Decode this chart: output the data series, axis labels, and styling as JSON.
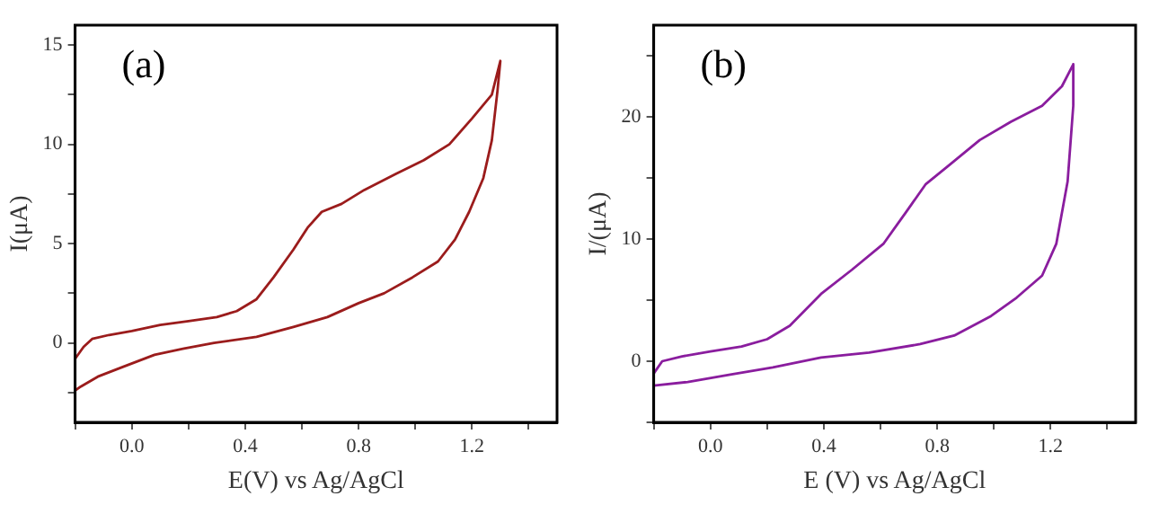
{
  "chart_data": [
    {
      "type": "line",
      "xlabel": "E(V) vs Ag/AgCl",
      "ylabel": "I(μA)",
      "annotations": [
        "(a)"
      ],
      "xlim": [
        -0.2,
        1.5
      ],
      "ylim": [
        -4,
        16
      ],
      "xticks": [
        {
          "value": -0.2,
          "label": null
        },
        {
          "value": 0,
          "label": "0.0"
        },
        {
          "value": 0.2,
          "label": null
        },
        0.4,
        {
          "value": 0.6,
          "label": null
        },
        0.8,
        {
          "value": 1.0,
          "label": null
        },
        1.2,
        {
          "value": 1.4,
          "label": null
        }
      ],
      "yticks": [
        {
          "value": -2.5,
          "label": null
        },
        0,
        {
          "value": 2.5,
          "label": null
        },
        5,
        {
          "value": 7.5,
          "label": null
        },
        10,
        {
          "value": 12.5,
          "label": null
        },
        15
      ],
      "grid": false,
      "legend": false,
      "marker": "none",
      "line_style": "solid",
      "series": [
        {
          "color": "#9b1c1c",
          "x": [
            -0.2,
            -0.17,
            -0.14,
            -0.08,
            0,
            0.1,
            0.2,
            0.3,
            0.37,
            0.44,
            0.5,
            0.57,
            0.62,
            0.67,
            0.74,
            0.82,
            0.93,
            1.03,
            1.12,
            1.2,
            1.27,
            1.3,
            1.29,
            1.27,
            1.24,
            1.19,
            1.14,
            1.08,
            0.99,
            0.89,
            0.8,
            0.69,
            0.57,
            0.44,
            0.29,
            0.18,
            0.08,
            -0.03,
            -0.12,
            -0.18,
            -0.2
          ],
          "values": [
            -0.8,
            -0.2,
            0.2,
            0.4,
            0.6,
            0.9,
            1.1,
            1.3,
            1.6,
            2.2,
            3.3,
            4.7,
            5.8,
            6.6,
            7.0,
            7.7,
            8.5,
            9.2,
            10.0,
            11.3,
            12.5,
            14.2,
            12.7,
            10.2,
            8.3,
            6.6,
            5.2,
            4.1,
            3.3,
            2.5,
            2.0,
            1.3,
            0.8,
            0.3,
            0,
            -0.3,
            -0.6,
            -1.2,
            -1.7,
            -2.2,
            -2.4
          ]
        }
      ]
    },
    {
      "type": "line",
      "xlabel": "E (V) vs Ag/AgCl",
      "ylabel": "I/(μA)",
      "annotations": [
        "(b)"
      ],
      "xlim": [
        -0.2,
        1.5
      ],
      "ylim": [
        -5,
        27.5
      ],
      "xticks": [
        {
          "value": -0.2,
          "label": null
        },
        {
          "value": 0,
          "label": "0.0"
        },
        {
          "value": 0.2,
          "label": null
        },
        0.4,
        {
          "value": 0.6,
          "label": null
        },
        0.8,
        {
          "value": 1.0,
          "label": null
        },
        1.2,
        {
          "value": 1.4,
          "label": null
        }
      ],
      "yticks": [
        {
          "value": -5,
          "label": null
        },
        0,
        {
          "value": 5,
          "label": null
        },
        10,
        {
          "value": 15,
          "label": null
        },
        20,
        {
          "value": 25,
          "label": null
        }
      ],
      "grid": false,
      "legend": false,
      "marker": "none",
      "line_style": "solid",
      "series": [
        {
          "color": "#8a1d9e",
          "x": [
            -0.2,
            -0.17,
            -0.1,
            0,
            0.11,
            0.2,
            0.28,
            0.39,
            0.5,
            0.61,
            0.69,
            0.76,
            0.84,
            0.95,
            1.06,
            1.17,
            1.24,
            1.28,
            1.28,
            1.26,
            1.22,
            1.17,
            1.08,
            0.99,
            0.86,
            0.74,
            0.56,
            0.39,
            0.22,
            0.07,
            -0.08,
            -0.2
          ],
          "values": [
            -1.0,
            0,
            0.4,
            0.8,
            1.2,
            1.8,
            2.9,
            5.5,
            7.5,
            9.6,
            12.2,
            14.5,
            16.0,
            18.1,
            19.6,
            20.9,
            22.5,
            24.3,
            20.9,
            14.7,
            9.6,
            7.0,
            5.2,
            3.7,
            2.1,
            1.4,
            0.7,
            0.3,
            -0.5,
            -1.1,
            -1.7,
            -2.0
          ]
        }
      ]
    }
  ]
}
